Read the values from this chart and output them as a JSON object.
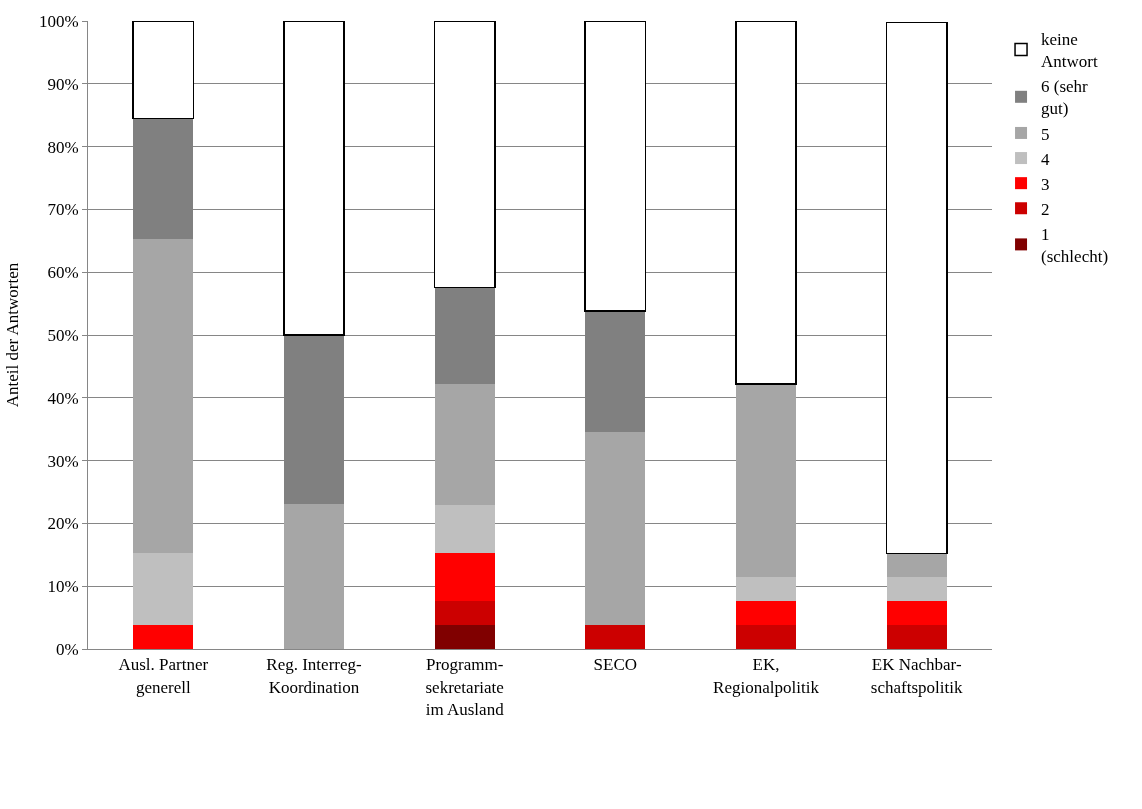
{
  "chart_data": {
    "type": "bar",
    "stacked": true,
    "ylabel": "Anteil der Antworten",
    "categories": [
      "Ausl. Partner generell",
      "Reg. Interreg-Koordination",
      "Programm-sekretariate im Ausland",
      "SECO",
      "EK, Regionalpolitik",
      "EK Nachbar-schaftspolitik"
    ],
    "series": [
      {
        "name": "1 (schlecht)",
        "color": "#800000",
        "values": [
          0,
          0,
          3.8,
          0,
          0,
          0
        ]
      },
      {
        "name": "2",
        "color": "#cc0000",
        "values": [
          0,
          0,
          3.8,
          3.8,
          3.8,
          3.8
        ]
      },
      {
        "name": "3",
        "color": "#ff0000",
        "values": [
          3.8,
          0,
          7.7,
          0,
          3.8,
          3.8
        ]
      },
      {
        "name": "4",
        "color": "#bfbfbf",
        "values": [
          11.5,
          0,
          7.7,
          0,
          3.8,
          3.8
        ]
      },
      {
        "name": "5",
        "color": "#a6a6a6",
        "values": [
          50,
          23.1,
          19.2,
          30.8,
          30.8,
          3.8
        ]
      },
      {
        "name": "6 (sehr gut)",
        "color": "#808080",
        "values": [
          19.2,
          26.9,
          15.4,
          19.2,
          0,
          0
        ]
      },
      {
        "name": "keine Antwort",
        "color": "#ffffff",
        "values": [
          15.4,
          50,
          42.3,
          46.2,
          57.7,
          84.6
        ]
      }
    ],
    "ylim": [
      0,
      100
    ],
    "yticks": [
      {
        "value": 0,
        "label": "0%"
      },
      {
        "value": 10,
        "label": "10%"
      },
      {
        "value": 20,
        "label": "20%"
      },
      {
        "value": 30,
        "label": "30%"
      },
      {
        "value": 40,
        "label": "40%"
      },
      {
        "value": 50,
        "label": "50%"
      },
      {
        "value": 60,
        "label": "60%"
      },
      {
        "value": 70,
        "label": "70%"
      },
      {
        "value": 80,
        "label": "80%"
      },
      {
        "value": 90,
        "label": "90%"
      },
      {
        "value": 100,
        "label": "100%"
      }
    ],
    "grid": "y",
    "legend": "right"
  }
}
